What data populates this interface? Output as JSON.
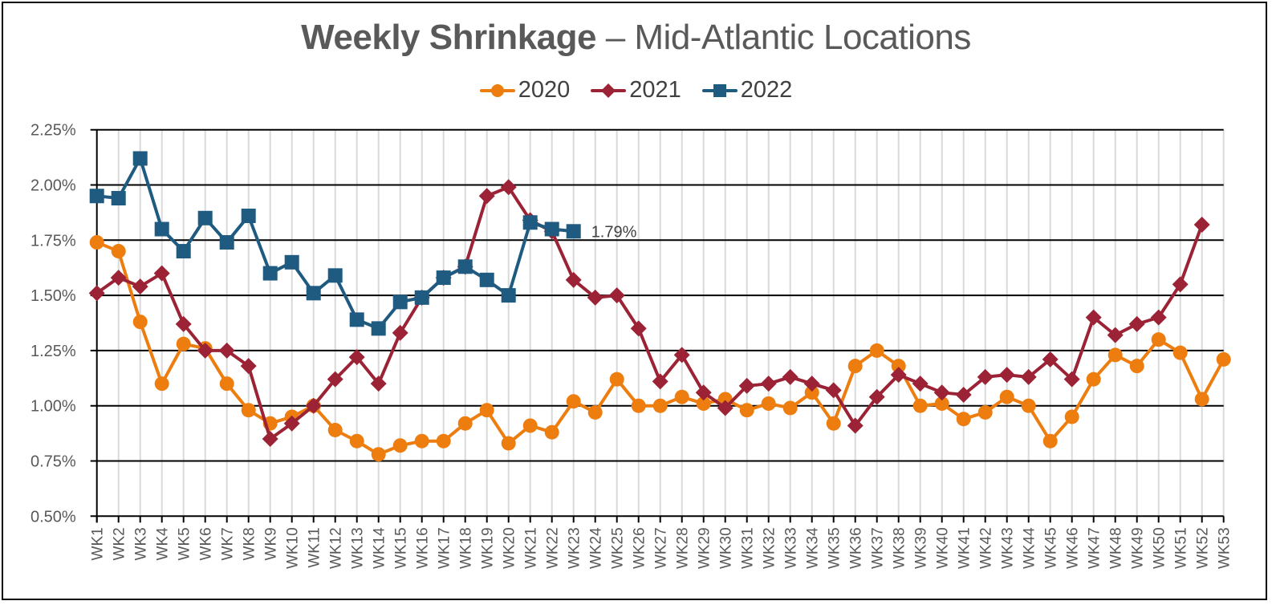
{
  "title": {
    "bold": "Weekly Shrinkage",
    "rest": " – Mid-Atlantic Locations"
  },
  "legend": [
    {
      "label": "2020",
      "color": "#ED7D0E",
      "marker": "circle"
    },
    {
      "label": "2021",
      "color": "#9B2335",
      "marker": "diamond"
    },
    {
      "label": "2022",
      "color": "#1F5A80",
      "marker": "square"
    }
  ],
  "data_label": "1.79%",
  "chart_data": {
    "type": "line",
    "title": "Weekly Shrinkage – Mid-Atlantic Locations",
    "xlabel": "",
    "ylabel": "",
    "ylim": [
      0.5,
      2.25
    ],
    "yticks": [
      "0.50%",
      "0.75%",
      "1.00%",
      "1.25%",
      "1.50%",
      "1.75%",
      "2.00%",
      "2.25%"
    ],
    "grid": {
      "horizontal": true,
      "vertical": true
    },
    "legend_position": "top",
    "categories": [
      "WK1",
      "WK2",
      "WK3",
      "WK4",
      "WK5",
      "WK6",
      "WK7",
      "WK8",
      "WK9",
      "WK10",
      "WK11",
      "WK12",
      "WK13",
      "WK14",
      "WK15",
      "WK16",
      "WK17",
      "WK18",
      "WK19",
      "WK20",
      "WK21",
      "WK22",
      "WK23",
      "WK24",
      "WK25",
      "WK26",
      "WK27",
      "WK28",
      "WK29",
      "WK30",
      "WK31",
      "WK32",
      "WK33",
      "WK34",
      "WK35",
      "WK36",
      "WK37",
      "WK38",
      "WK39",
      "WK40",
      "WK41",
      "WK42",
      "WK43",
      "WK44",
      "WK45",
      "WK46",
      "WK47",
      "WK48",
      "WK49",
      "WK50",
      "WK51",
      "WK52",
      "WK53"
    ],
    "series": [
      {
        "name": "2020",
        "color": "#ED7D0E",
        "marker": "circle",
        "values": [
          1.74,
          1.7,
          1.38,
          1.1,
          1.28,
          1.26,
          1.1,
          0.98,
          0.92,
          0.95,
          1.0,
          0.89,
          0.84,
          0.78,
          0.82,
          0.84,
          0.84,
          0.92,
          0.98,
          0.83,
          0.91,
          0.88,
          1.02,
          0.97,
          1.12,
          1.0,
          1.0,
          1.04,
          1.01,
          1.03,
          0.98,
          1.01,
          0.99,
          1.06,
          0.92,
          1.18,
          1.25,
          1.18,
          1.0,
          1.01,
          0.94,
          0.97,
          1.04,
          1.0,
          0.84,
          0.95,
          1.12,
          1.23,
          1.18,
          1.3,
          1.24,
          1.03,
          1.21
        ]
      },
      {
        "name": "2021",
        "color": "#9B2335",
        "marker": "diamond",
        "values": [
          1.51,
          1.58,
          1.54,
          1.6,
          1.37,
          1.25,
          1.25,
          1.18,
          0.85,
          0.92,
          1.0,
          1.12,
          1.22,
          1.1,
          1.33,
          1.49,
          1.58,
          1.63,
          1.95,
          1.99,
          1.84,
          1.79,
          1.57,
          1.49,
          1.5,
          1.35,
          1.11,
          1.23,
          1.06,
          0.99,
          1.09,
          1.1,
          1.13,
          1.1,
          1.07,
          0.91,
          1.04,
          1.14,
          1.1,
          1.06,
          1.05,
          1.13,
          1.14,
          1.13,
          1.21,
          1.12,
          1.4,
          1.32,
          1.37,
          1.4,
          1.55,
          1.82
        ]
      },
      {
        "name": "2022",
        "color": "#1F5A80",
        "marker": "square",
        "values": [
          1.95,
          1.94,
          2.12,
          1.8,
          1.7,
          1.85,
          1.74,
          1.86,
          1.6,
          1.65,
          1.51,
          1.59,
          1.39,
          1.35,
          1.47,
          1.49,
          1.58,
          1.63,
          1.57,
          1.5,
          1.83,
          1.8,
          1.79
        ]
      }
    ],
    "annotations": [
      {
        "series": "2022",
        "category": "WK23",
        "text": "1.79%"
      }
    ]
  }
}
